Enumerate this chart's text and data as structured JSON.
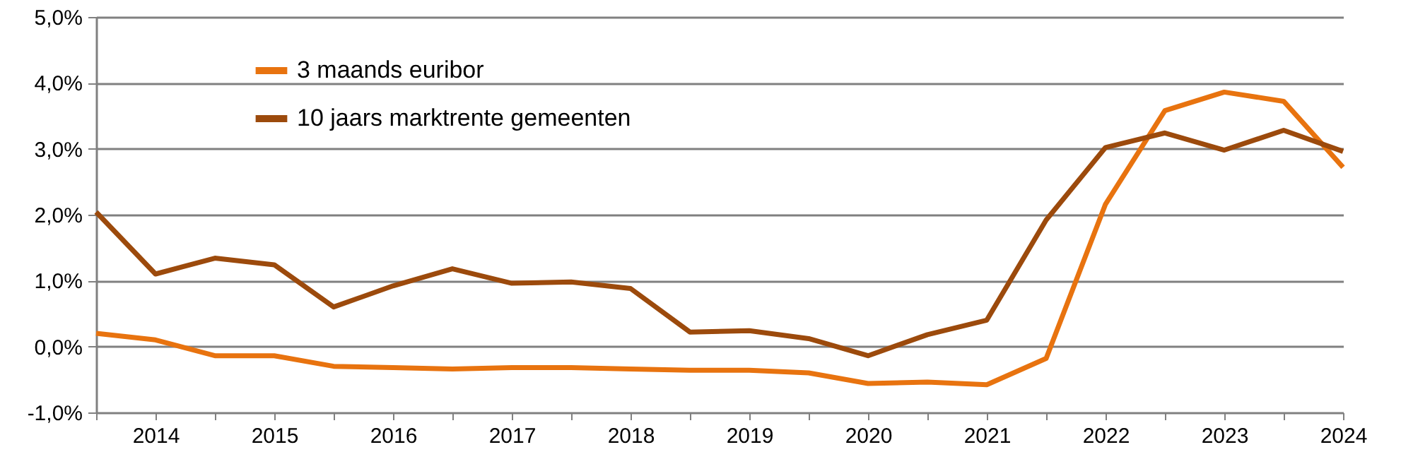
{
  "chart_data": {
    "type": "line",
    "categories": [
      null,
      "2014",
      null,
      "2015",
      null,
      "2016",
      null,
      "2017",
      null,
      "2018",
      null,
      "2019",
      null,
      "2020",
      null,
      "2021",
      null,
      "2022",
      null,
      "2023",
      null,
      "2024"
    ],
    "series": [
      {
        "name": "3 maands euribor",
        "color": "#e8730f",
        "values": [
          0.2,
          0.1,
          -0.14,
          -0.14,
          -0.3,
          -0.32,
          -0.34,
          -0.32,
          -0.32,
          -0.34,
          -0.36,
          -0.36,
          -0.4,
          -0.56,
          -0.54,
          -0.58,
          -0.18,
          2.16,
          3.58,
          3.86,
          3.72,
          2.72
        ]
      },
      {
        "name": "10 jaars marktrente gemeenten",
        "color": "#9c4a0c",
        "values": [
          2.04,
          1.1,
          1.34,
          1.24,
          0.6,
          0.92,
          1.18,
          0.96,
          0.98,
          0.88,
          0.22,
          0.24,
          0.12,
          -0.14,
          0.18,
          0.4,
          1.92,
          3.02,
          3.24,
          2.98,
          3.28,
          2.96
        ]
      }
    ],
    "ylim": [
      -1,
      5
    ],
    "yticks": [
      {
        "value": -1,
        "label": "-1,0%"
      },
      {
        "value": 0,
        "label": "0,0%"
      },
      {
        "value": 1,
        "label": "1,0%"
      },
      {
        "value": 2,
        "label": "2,0%"
      },
      {
        "value": 3,
        "label": "3,0%"
      },
      {
        "value": 4,
        "label": "4,0%"
      },
      {
        "value": 5,
        "label": "5,0%"
      }
    ],
    "grid": "y",
    "legend": "top left",
    "marker": "none",
    "line_style": "solid"
  }
}
